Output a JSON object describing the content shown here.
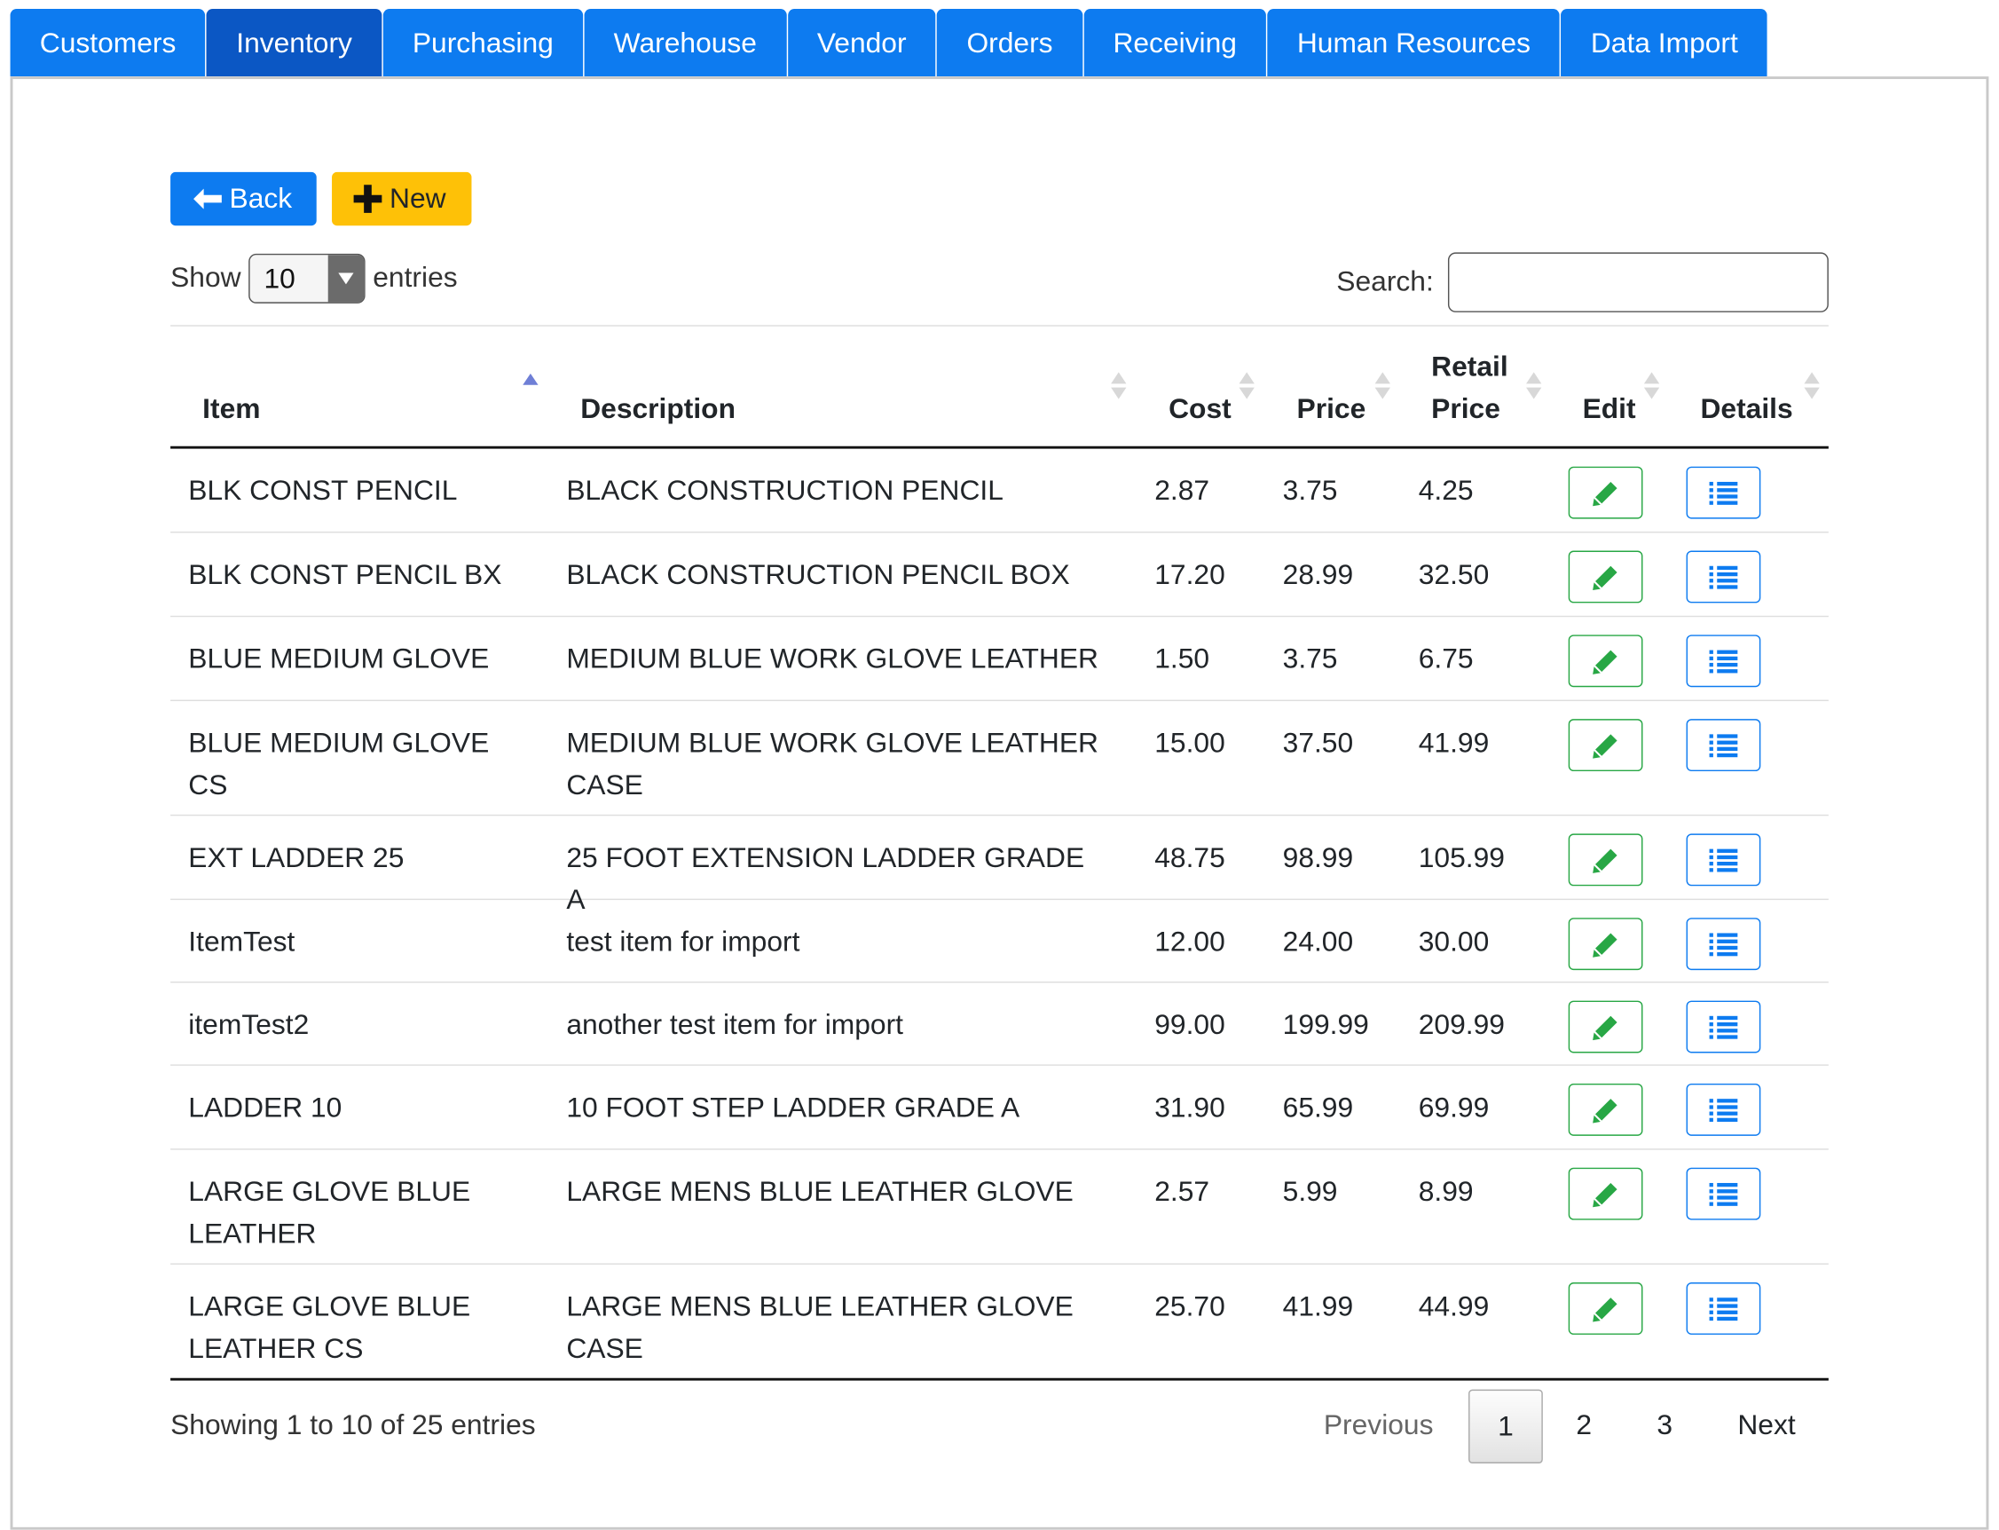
{
  "nav": {
    "tabs": [
      {
        "label": "Customers",
        "active": false
      },
      {
        "label": "Inventory",
        "active": true
      },
      {
        "label": "Purchasing",
        "active": false
      },
      {
        "label": "Warehouse",
        "active": false
      },
      {
        "label": "Vendor",
        "active": false
      },
      {
        "label": "Orders",
        "active": false
      },
      {
        "label": "Receiving",
        "active": false
      },
      {
        "label": "Human Resources",
        "active": false
      },
      {
        "label": "Data Import",
        "active": false
      }
    ]
  },
  "toolbar": {
    "back_label": "Back",
    "back_icon": "arrow-left-icon",
    "new_label": "New",
    "new_icon": "plus-icon"
  },
  "length": {
    "show_label": "Show",
    "selected": "10",
    "entries_label": "entries"
  },
  "search": {
    "label": "Search:",
    "value": "",
    "placeholder": ""
  },
  "table": {
    "columns": {
      "item": "Item",
      "description": "Description",
      "cost": "Cost",
      "price": "Price",
      "retail_line1": "Retail",
      "retail_line2": "Price",
      "edit": "Edit",
      "details": "Details"
    },
    "sorted_column": "Item",
    "sort_direction": "ascending",
    "rows": [
      {
        "item": "BLK CONST PENCIL",
        "description": "BLACK CONSTRUCTION PENCIL",
        "cost": "2.87",
        "price": "3.75",
        "retail": "4.25"
      },
      {
        "item": "BLK CONST PENCIL BX",
        "description": "BLACK CONSTRUCTION PENCIL BOX",
        "cost": "17.20",
        "price": "28.99",
        "retail": "32.50"
      },
      {
        "item": "BLUE MEDIUM GLOVE",
        "description": "MEDIUM BLUE WORK GLOVE LEATHER",
        "cost": "1.50",
        "price": "3.75",
        "retail": "6.75"
      },
      {
        "item": "BLUE MEDIUM GLOVE CS",
        "description": "MEDIUM BLUE WORK GLOVE LEATHER CASE",
        "cost": "15.00",
        "price": "37.50",
        "retail": "41.99"
      },
      {
        "item": "EXT LADDER 25",
        "description": "25 FOOT EXTENSION LADDER GRADE A",
        "cost": "48.75",
        "price": "98.99",
        "retail": "105.99"
      },
      {
        "item": "ItemTest",
        "description": "test item for import",
        "cost": "12.00",
        "price": "24.00",
        "retail": "30.00"
      },
      {
        "item": "itemTest2",
        "description": "another test item for import",
        "cost": "99.00",
        "price": "199.99",
        "retail": "209.99"
      },
      {
        "item": "LADDER 10",
        "description": "10 FOOT STEP LADDER GRADE A",
        "cost": "31.90",
        "price": "65.99",
        "retail": "69.99"
      },
      {
        "item": "LARGE GLOVE BLUE LEATHER",
        "description": "LARGE MENS BLUE LEATHER GLOVE",
        "cost": "2.57",
        "price": "5.99",
        "retail": "8.99"
      },
      {
        "item": "LARGE GLOVE BLUE LEATHER CS",
        "description": "LARGE MENS BLUE LEATHER GLOVE CASE",
        "cost": "25.70",
        "price": "41.99",
        "retail": "44.99"
      }
    ],
    "edit_icon": "pencil-icon",
    "details_icon": "list-icon"
  },
  "footer": {
    "info": "Showing 1 to 10 of 25 entries",
    "pagination": {
      "previous": "Previous",
      "pages": [
        "1",
        "2",
        "3"
      ],
      "current": "1",
      "next": "Next"
    }
  },
  "colors": {
    "tab": "#0d7bf0",
    "tab_active": "#0b57c4",
    "back_button": "#0d7bf0",
    "new_button": "#fec107",
    "edit_accent": "#28a745",
    "details_accent": "#0d7bf0"
  }
}
